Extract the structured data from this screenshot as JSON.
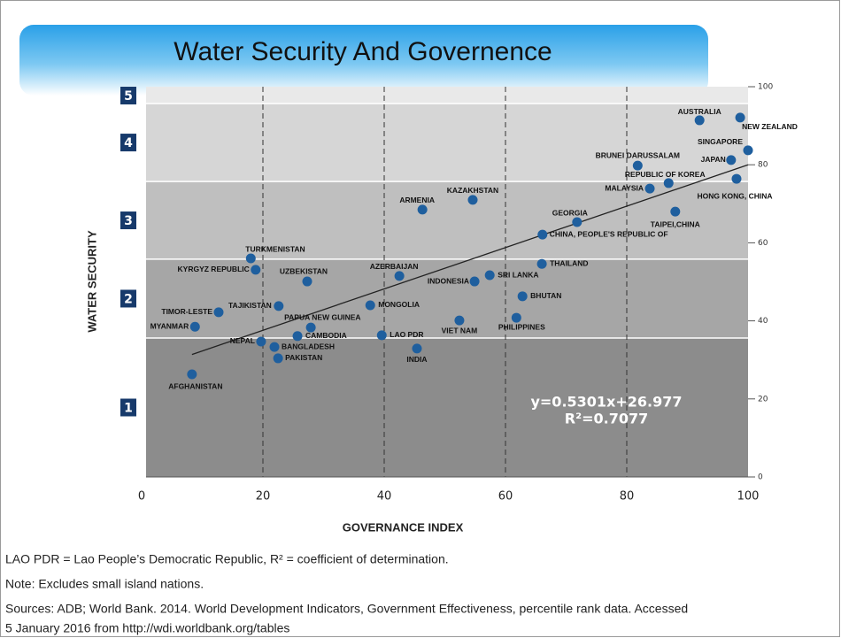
{
  "header": {
    "title": "Water Security And Governence"
  },
  "chart_data": {
    "type": "scatter",
    "x_label": "GOVERNANCE INDEX",
    "y_label": "WATER SECURITY",
    "xlim": [
      0,
      100
    ],
    "xticks": [
      0,
      20,
      40,
      60,
      80,
      100
    ],
    "ylim": [
      0,
      100
    ],
    "yticks": [
      0,
      20,
      40,
      60,
      80,
      100
    ],
    "y_axis_side": "right",
    "grid": "vertical-dashed",
    "color": "#1f5f9e",
    "bands": [
      {
        "label": "1",
        "from": 0,
        "to": 35.6,
        "color": "#8c8c8c"
      },
      {
        "label": "2",
        "from": 35.6,
        "to": 55.8,
        "color": "#a6a6a6"
      },
      {
        "label": "3",
        "from": 55.8,
        "to": 75.7,
        "color": "#bfbfbf"
      },
      {
        "label": "4",
        "from": 75.7,
        "to": 95.7,
        "color": "#d6d6d6"
      },
      {
        "label": "5",
        "from": 95.7,
        "to": 100,
        "color": "#e9e9e9"
      }
    ],
    "labels": [
      "AUSTRALIA",
      "NEW ZEALAND",
      "SINGAPORE",
      "JAPAN",
      "BRUNEI DARUSSALAM",
      "REPUBLIC OF KOREA",
      "MALAYSIA",
      "HONG KONG, CHINA",
      "TAIPEI,CHINA",
      "GEORGIA",
      "CHINA, PEOPLE'S REPUBLIC OF",
      "KAZAKHSTAN",
      "ARMENIA",
      "THAILAND",
      "SRI LANKA",
      "INDONESIA",
      "AZERBAIJAN",
      "BHUTAN",
      "PHILIPPINES",
      "VIET NAM",
      "MONGOLIA",
      "LAO PDR",
      "INDIA",
      "TURKMENISTAN",
      "KYRGYZ REPUBLIC",
      "UZBEKISTAN",
      "TAJIKISTAN",
      "PAPUA NEW GUINEA",
      "CAMBODIA",
      "TIMOR-LESTE",
      "MYANMAR",
      "NEPAL",
      "BANGLADESH",
      "PAKISTAN",
      "AFGHANISTAN"
    ],
    "x": [
      92.0,
      98.7,
      100,
      97.2,
      81.8,
      86.9,
      83.8,
      98.1,
      88.0,
      71.8,
      66.1,
      54.6,
      46.3,
      66.0,
      57.4,
      54.9,
      42.5,
      62.8,
      61.8,
      52.4,
      37.7,
      39.6,
      45.4,
      18.0,
      18.8,
      27.3,
      22.6,
      27.9,
      25.7,
      12.7,
      8.8,
      19.7,
      21.9,
      22.5,
      8.3
    ],
    "values": [
      91.4,
      92.1,
      83.7,
      81.2,
      79.8,
      75.3,
      73.9,
      76.4,
      68.0,
      65.3,
      62.1,
      71.0,
      68.5,
      54.6,
      51.7,
      50.1,
      51.5,
      46.3,
      40.8,
      40.1,
      44.0,
      36.3,
      32.9,
      56.0,
      53.1,
      50.1,
      43.8,
      38.3,
      36.1,
      42.2,
      38.5,
      34.7,
      33.3,
      30.4,
      26.3
    ],
    "trendline": {
      "slope": 0.5301,
      "intercept": 26.977,
      "label": "y=0.5301x+26.977",
      "r2_label": "R²=0.7077"
    }
  },
  "notes": [
    "LAO PDR = Lao People’s Democratic Republic, R² = coefficient of determination.",
    "Note: Excludes small island nations.",
    "Sources: ADB; World Bank. 2014. World Development Indicators, Government Effectiveness, percentile rank data. Accessed",
    "5 January 2016 from http://wdi.worldbank.org/tables"
  ]
}
